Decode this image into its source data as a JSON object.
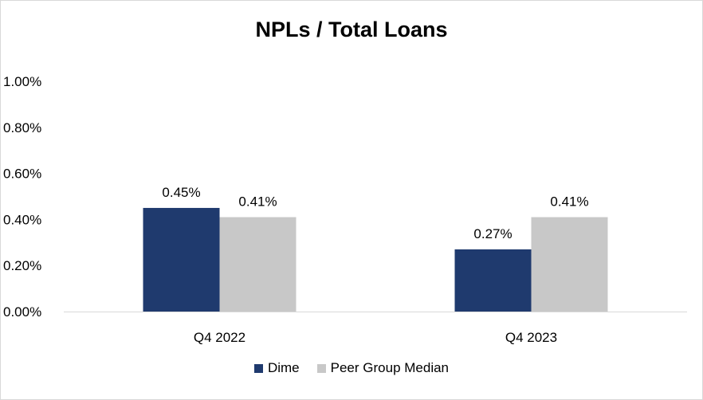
{
  "chart_data": {
    "type": "bar",
    "title": "NPLs / Total Loans",
    "categories": [
      "Q4 2022",
      "Q4 2023"
    ],
    "series": [
      {
        "name": "Dime",
        "values": [
          0.45,
          0.27
        ],
        "labels": [
          "0.45%",
          "0.27%"
        ],
        "color": "#1f3a6e"
      },
      {
        "name": "Peer Group Median",
        "values": [
          0.41,
          0.41
        ],
        "labels": [
          "0.41%",
          "0.41%"
        ],
        "color": "#c8c8c8"
      }
    ],
    "y_ticks": [
      "0.00%",
      "0.20%",
      "0.40%",
      "0.60%",
      "0.80%",
      "1.00%"
    ],
    "ylim": [
      0,
      1.0
    ],
    "legend_position": "bottom",
    "grid": false
  }
}
